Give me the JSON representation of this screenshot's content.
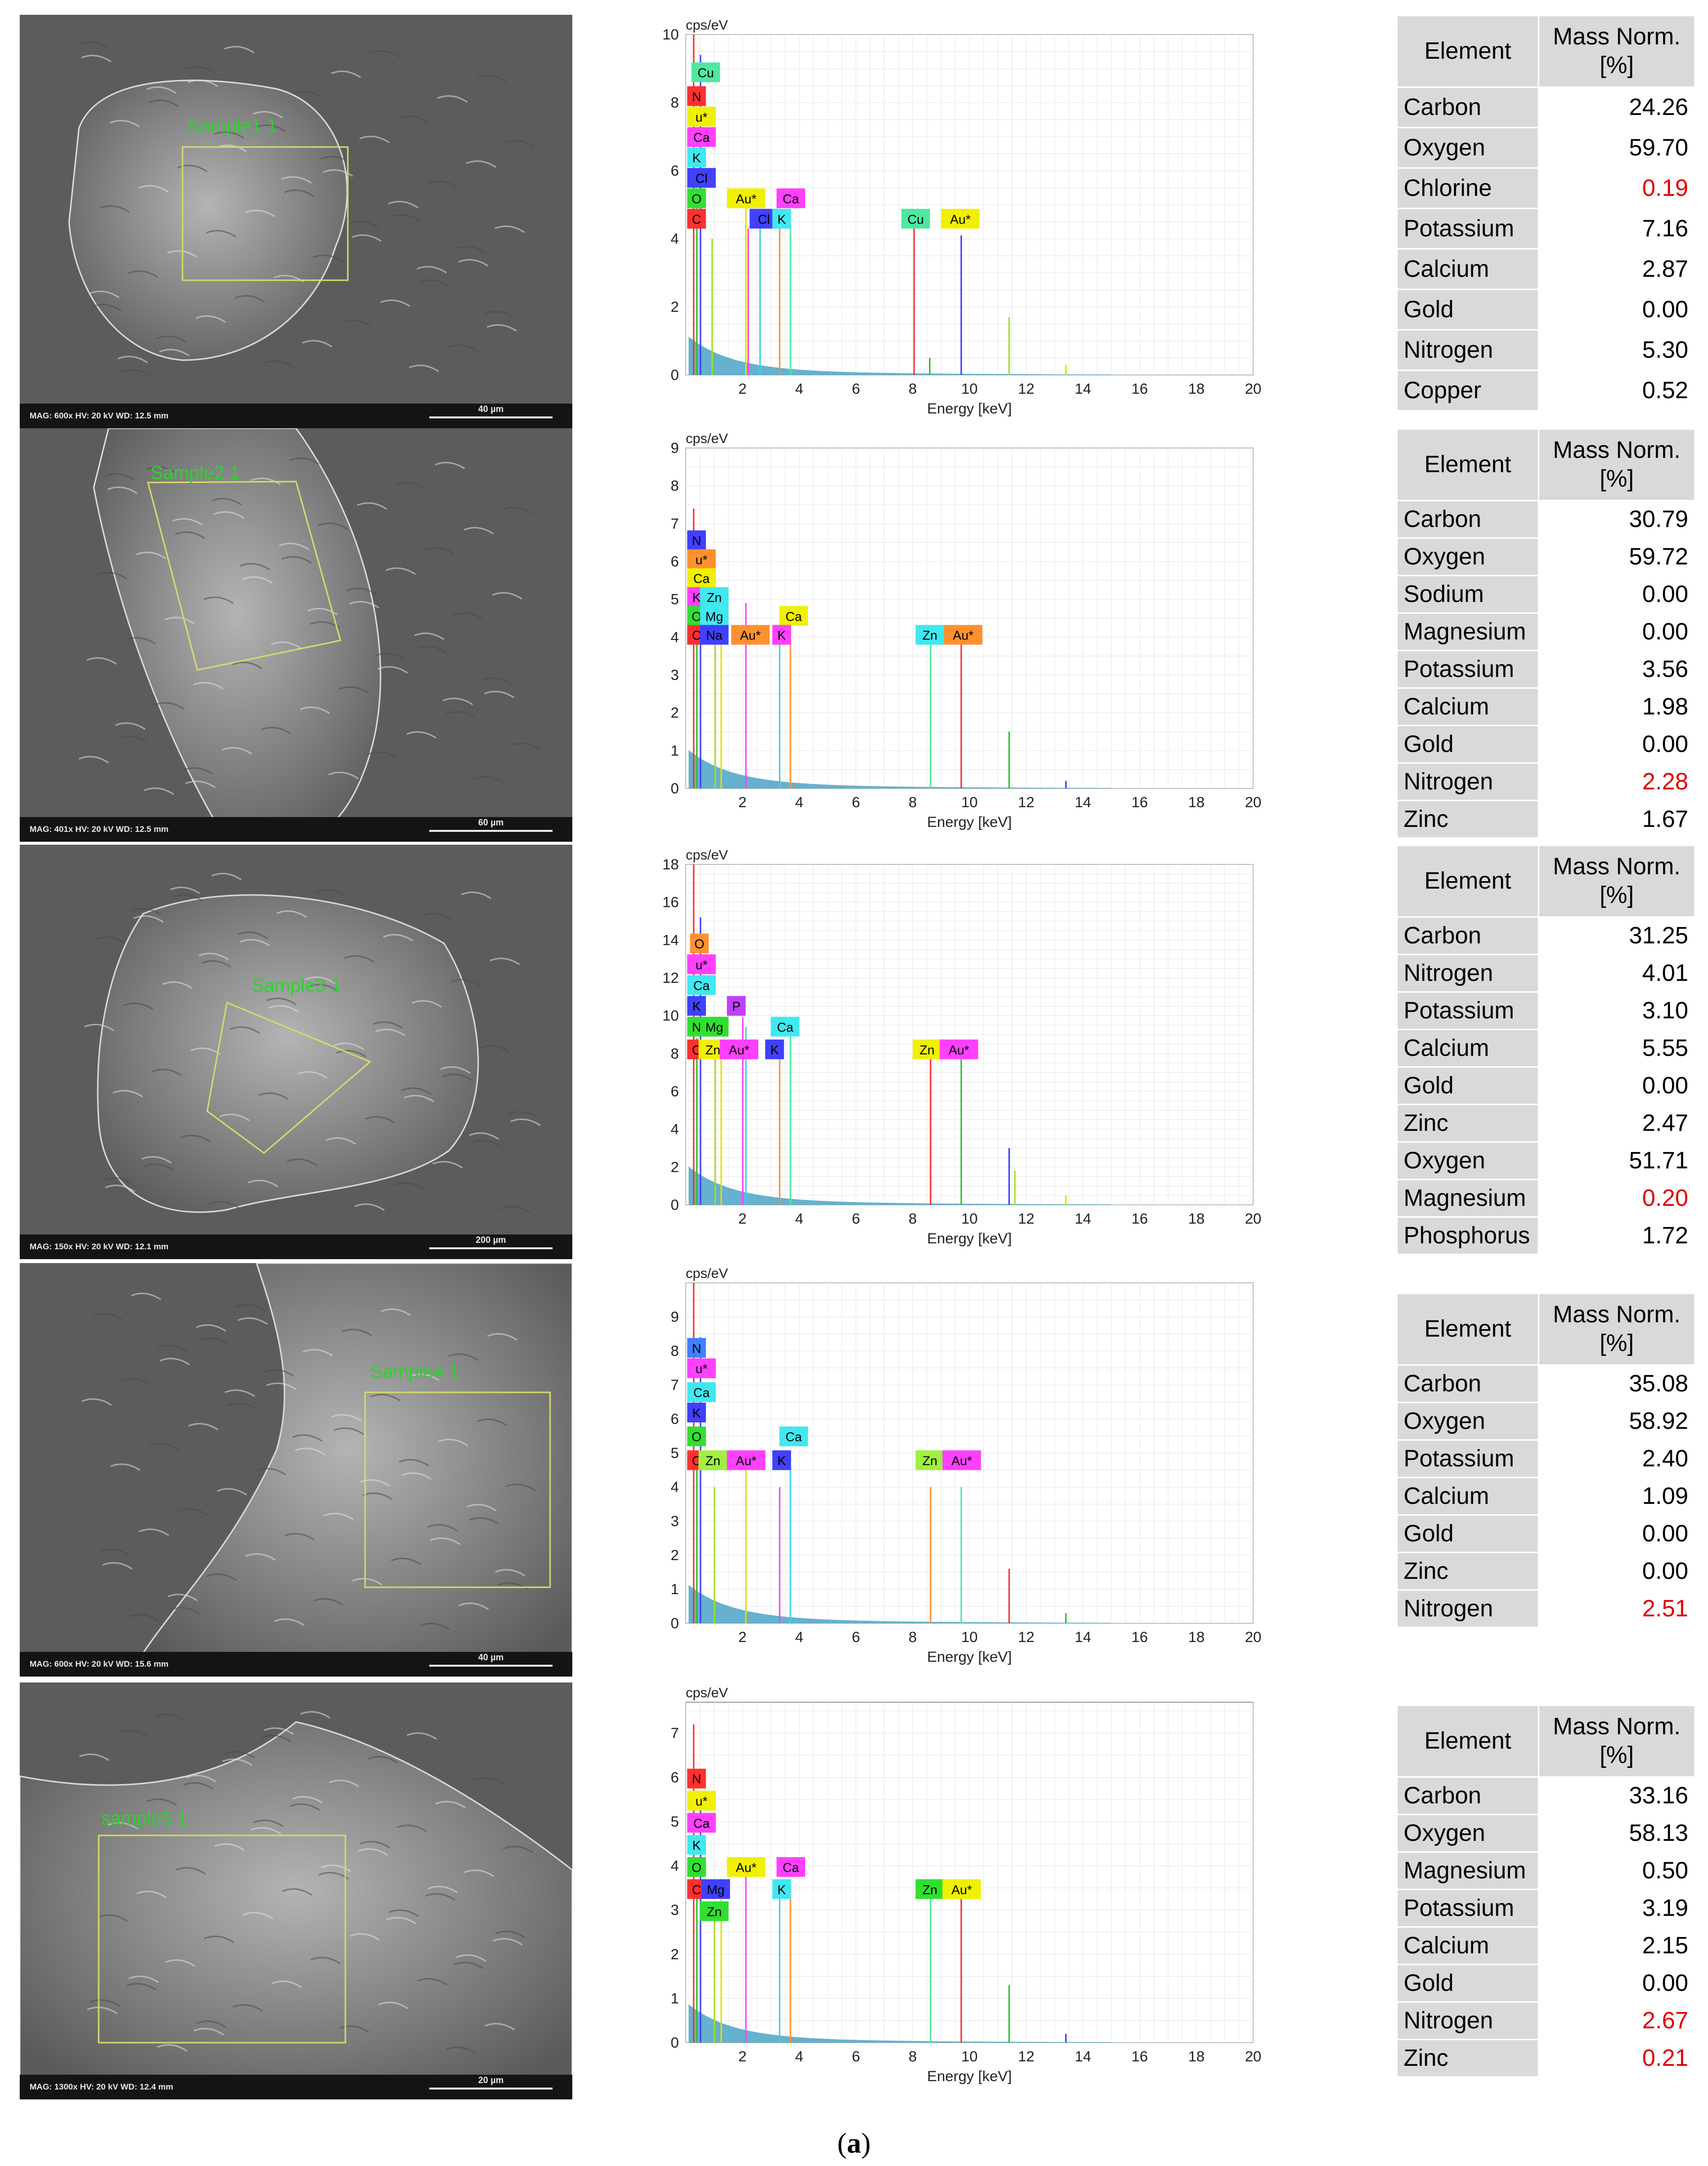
{
  "figure_label_open": "(",
  "figure_label_letter": "a",
  "figure_label_close": ")",
  "table_header_element": "Element",
  "table_header_mass_line1": "Mass Norm.",
  "table_header_mass_line2": "[%]",
  "highlight_color": "#e00000",
  "rows": [
    {
      "sem": {
        "meta": "MAG: 600x   HV: 20 kV   WD: 12.5 mm",
        "scale": "40 µm",
        "sample": "Sample1 1"
      },
      "elements": [
        {
          "name": "Carbon",
          "value": "24.26",
          "highlight": false
        },
        {
          "name": "Oxygen",
          "value": "59.70",
          "highlight": false
        },
        {
          "name": "Chlorine",
          "value": "0.19",
          "highlight": true
        },
        {
          "name": "Potassium",
          "value": "7.16",
          "highlight": false
        },
        {
          "name": "Calcium",
          "value": "2.87",
          "highlight": false
        },
        {
          "name": "Gold",
          "value": "0.00",
          "highlight": false
        },
        {
          "name": "Nitrogen",
          "value": "5.30",
          "highlight": false
        },
        {
          "name": "Copper",
          "value": "0.52",
          "highlight": false
        }
      ]
    },
    {
      "sem": {
        "meta": "MAG: 401x   HV: 20 kV   WD: 12.5 mm",
        "scale": "60 µm",
        "sample": "Sample2 1"
      },
      "elements": [
        {
          "name": "Carbon",
          "value": "30.79",
          "highlight": false
        },
        {
          "name": "Oxygen",
          "value": "59.72",
          "highlight": false
        },
        {
          "name": "Sodium",
          "value": "0.00",
          "highlight": false
        },
        {
          "name": "Magnesium",
          "value": "0.00",
          "highlight": false
        },
        {
          "name": "Potassium",
          "value": "3.56",
          "highlight": false
        },
        {
          "name": "Calcium",
          "value": "1.98",
          "highlight": false
        },
        {
          "name": "Gold",
          "value": "0.00",
          "highlight": false
        },
        {
          "name": "Nitrogen",
          "value": "2.28",
          "highlight": true
        },
        {
          "name": "Zinc",
          "value": "1.67",
          "highlight": false
        }
      ]
    },
    {
      "sem": {
        "meta": "MAG: 150x   HV: 20 kV   WD: 12.1 mm",
        "scale": "200 µm",
        "sample": "Sample3 1"
      },
      "elements": [
        {
          "name": "Carbon",
          "value": "31.25",
          "highlight": false
        },
        {
          "name": "Nitrogen",
          "value": "4.01",
          "highlight": false
        },
        {
          "name": "Potassium",
          "value": "3.10",
          "highlight": false
        },
        {
          "name": "Calcium",
          "value": "5.55",
          "highlight": false
        },
        {
          "name": "Gold",
          "value": "0.00",
          "highlight": false
        },
        {
          "name": "Zinc",
          "value": "2.47",
          "highlight": false
        },
        {
          "name": "Oxygen",
          "value": "51.71",
          "highlight": false
        },
        {
          "name": "Magnesium",
          "value": "0.20",
          "highlight": true
        },
        {
          "name": "Phosphorus",
          "value": "1.72",
          "highlight": false
        }
      ]
    },
    {
      "sem": {
        "meta": "MAG: 600x   HV: 20 kV   WD: 15.6 mm",
        "scale": "40 µm",
        "sample": "Sample4 1"
      },
      "elements": [
        {
          "name": "Carbon",
          "value": "35.08",
          "highlight": false
        },
        {
          "name": "Oxygen",
          "value": "58.92",
          "highlight": false
        },
        {
          "name": "Potassium",
          "value": "2.40",
          "highlight": false
        },
        {
          "name": "Calcium",
          "value": "1.09",
          "highlight": false
        },
        {
          "name": "Gold",
          "value": "0.00",
          "highlight": false
        },
        {
          "name": "Zinc",
          "value": "0.00",
          "highlight": false
        },
        {
          "name": "Nitrogen",
          "value": "2.51",
          "highlight": true
        }
      ]
    },
    {
      "sem": {
        "meta": "MAG: 1300x   HV: 20 kV   WD: 12.4 mm",
        "scale": "20 µm",
        "sample": "sample5 1"
      },
      "elements": [
        {
          "name": "Carbon",
          "value": "33.16",
          "highlight": false
        },
        {
          "name": "Oxygen",
          "value": "58.13",
          "highlight": false
        },
        {
          "name": "Magnesium",
          "value": "0.50",
          "highlight": false
        },
        {
          "name": "Potassium",
          "value": "3.19",
          "highlight": false
        },
        {
          "name": "Calcium",
          "value": "2.15",
          "highlight": false
        },
        {
          "name": "Gold",
          "value": "0.00",
          "highlight": false
        },
        {
          "name": "Nitrogen",
          "value": "2.67",
          "highlight": true
        },
        {
          "name": "Zinc",
          "value": "0.21",
          "highlight": true
        }
      ]
    }
  ],
  "chart_data": [
    {
      "type": "line",
      "ylabel": "cps/eV",
      "xlabel": "Energy [keV]",
      "xlim": [
        0,
        20
      ],
      "ylim": [
        0,
        10
      ],
      "xticks": [
        2,
        4,
        6,
        8,
        10,
        12,
        14,
        16,
        18,
        20
      ],
      "yticks": [
        0,
        2,
        4,
        6,
        8,
        10
      ],
      "grid": true,
      "peaks": [
        {
          "x": 0.28,
          "y": 10
        },
        {
          "x": 0.39,
          "y": 5.3
        },
        {
          "x": 0.52,
          "y": 9.4
        },
        {
          "x": 0.93,
          "y": 4.0
        },
        {
          "x": 2.12,
          "y": 4.9
        },
        {
          "x": 2.2,
          "y": 4.3
        },
        {
          "x": 2.62,
          "y": 4.5
        },
        {
          "x": 3.31,
          "y": 4.5
        },
        {
          "x": 3.69,
          "y": 4.4
        },
        {
          "x": 8.05,
          "y": 4.3
        },
        {
          "x": 8.6,
          "y": 0.5
        },
        {
          "x": 9.71,
          "y": 4.1
        },
        {
          "x": 11.4,
          "y": 1.7
        },
        {
          "x": 13.4,
          "y": 0.3
        }
      ],
      "element_labels": [
        {
          "text": "Cu",
          "x": 0.2,
          "y": 8.6,
          "color": "#4ee8a0"
        },
        {
          "text": "N",
          "x": 0.05,
          "y": 7.9,
          "color": "#ff3030"
        },
        {
          "text": "u*",
          "x": 0.05,
          "y": 7.3,
          "color": "#f0f000"
        },
        {
          "text": "Ca",
          "x": 0.05,
          "y": 6.7,
          "color": "#ff40ff"
        },
        {
          "text": "K",
          "x": 0.05,
          "y": 6.1,
          "color": "#40e8f0"
        },
        {
          "text": "Cl",
          "x": 0.05,
          "y": 5.5,
          "color": "#4040ff"
        },
        {
          "text": "O",
          "x": 0.05,
          "y": 4.9,
          "color": "#30e030"
        },
        {
          "text": "C",
          "x": 0.05,
          "y": 4.3,
          "color": "#ff3030"
        },
        {
          "text": "Au*",
          "x": 1.45,
          "y": 4.9,
          "color": "#f0f000"
        },
        {
          "text": "Ca",
          "x": 3.2,
          "y": 4.9,
          "color": "#ff40ff"
        },
        {
          "text": "Cl",
          "x": 2.25,
          "y": 4.3,
          "color": "#4040ff"
        },
        {
          "text": "K",
          "x": 3.05,
          "y": 4.3,
          "color": "#40e8f0"
        },
        {
          "text": "Cu",
          "x": 7.6,
          "y": 4.3,
          "color": "#4ee8a0"
        },
        {
          "text": "Au*",
          "x": 9.0,
          "y": 4.3,
          "color": "#f0f000"
        }
      ]
    },
    {
      "type": "line",
      "ylabel": "cps/eV",
      "xlabel": "Energy [keV]",
      "xlim": [
        0,
        20
      ],
      "ylim": [
        0,
        9
      ],
      "xticks": [
        2,
        4,
        6,
        8,
        10,
        12,
        14,
        16,
        18,
        20
      ],
      "yticks": [
        0,
        1,
        2,
        3,
        4,
        5,
        6,
        7,
        8,
        9
      ],
      "grid": true,
      "peaks": [
        {
          "x": 0.28,
          "y": 7.4
        },
        {
          "x": 0.39,
          "y": 4.6
        },
        {
          "x": 0.52,
          "y": 6.6
        },
        {
          "x": 1.04,
          "y": 4.3
        },
        {
          "x": 1.25,
          "y": 4.0
        },
        {
          "x": 2.12,
          "y": 4.9
        },
        {
          "x": 3.31,
          "y": 4.0
        },
        {
          "x": 3.69,
          "y": 4.3
        },
        {
          "x": 8.63,
          "y": 4.0
        },
        {
          "x": 9.71,
          "y": 4.0
        },
        {
          "x": 11.4,
          "y": 1.5
        },
        {
          "x": 13.4,
          "y": 0.2
        }
      ],
      "element_labels": [
        {
          "text": "N",
          "x": 0.05,
          "y": 6.3,
          "color": "#4040ff"
        },
        {
          "text": "u*",
          "x": 0.05,
          "y": 5.8,
          "color": "#ff9030"
        },
        {
          "text": "Ca",
          "x": 0.05,
          "y": 5.3,
          "color": "#f0f000"
        },
        {
          "text": "K",
          "x": 0.05,
          "y": 4.8,
          "color": "#ff40ff"
        },
        {
          "text": "Zn",
          "x": 0.5,
          "y": 4.8,
          "color": "#40e8f0"
        },
        {
          "text": "O",
          "x": 0.05,
          "y": 4.3,
          "color": "#30e030"
        },
        {
          "text": "Mg",
          "x": 0.5,
          "y": 4.3,
          "color": "#40e8f0"
        },
        {
          "text": "C",
          "x": 0.05,
          "y": 3.8,
          "color": "#ff3030"
        },
        {
          "text": "Na",
          "x": 0.5,
          "y": 3.8,
          "color": "#4040ff"
        },
        {
          "text": "Au*",
          "x": 1.6,
          "y": 3.8,
          "color": "#ff9030"
        },
        {
          "text": "Ca",
          "x": 3.3,
          "y": 4.3,
          "color": "#f0f000"
        },
        {
          "text": "K",
          "x": 3.05,
          "y": 3.8,
          "color": "#ff40ff"
        },
        {
          "text": "Zn",
          "x": 8.1,
          "y": 3.8,
          "color": "#40e8f0"
        },
        {
          "text": "Au*",
          "x": 9.1,
          "y": 3.8,
          "color": "#ff9030"
        }
      ]
    },
    {
      "type": "line",
      "ylabel": "cps/eV",
      "xlabel": "Energy [keV]",
      "xlim": [
        0,
        20
      ],
      "ylim": [
        0,
        18
      ],
      "xticks": [
        2,
        4,
        6,
        8,
        10,
        12,
        14,
        16,
        18,
        20
      ],
      "yticks": [
        0,
        2,
        4,
        6,
        8,
        10,
        12,
        14,
        16,
        18
      ],
      "grid": true,
      "peaks": [
        {
          "x": 0.28,
          "y": 18
        },
        {
          "x": 0.39,
          "y": 8.8
        },
        {
          "x": 0.52,
          "y": 15.2
        },
        {
          "x": 1.04,
          "y": 8.0
        },
        {
          "x": 1.25,
          "y": 8.1
        },
        {
          "x": 2.01,
          "y": 9.9
        },
        {
          "x": 2.12,
          "y": 9.4
        },
        {
          "x": 3.31,
          "y": 8.1
        },
        {
          "x": 3.69,
          "y": 9.0
        },
        {
          "x": 8.63,
          "y": 8.0
        },
        {
          "x": 9.71,
          "y": 8.1
        },
        {
          "x": 11.4,
          "y": 3.0
        },
        {
          "x": 11.6,
          "y": 1.8
        },
        {
          "x": 13.4,
          "y": 0.5
        }
      ],
      "element_labels": [
        {
          "text": "O",
          "x": 0.15,
          "y": 13.3,
          "color": "#ff9030"
        },
        {
          "text": "u*",
          "x": 0.05,
          "y": 12.2,
          "color": "#ff40ff"
        },
        {
          "text": "Ca",
          "x": 0.05,
          "y": 11.1,
          "color": "#40e8f0"
        },
        {
          "text": "K",
          "x": 0.05,
          "y": 10.0,
          "color": "#4040ff"
        },
        {
          "text": "P",
          "x": 1.45,
          "y": 10.0,
          "color": "#c040ff"
        },
        {
          "text": "N",
          "x": 0.05,
          "y": 8.9,
          "color": "#30e030"
        },
        {
          "text": "Mg",
          "x": 0.5,
          "y": 8.9,
          "color": "#30e030"
        },
        {
          "text": "Ca",
          "x": 3.0,
          "y": 8.9,
          "color": "#40e8f0"
        },
        {
          "text": "C",
          "x": 0.05,
          "y": 7.7,
          "color": "#ff3030"
        },
        {
          "text": "Zn",
          "x": 0.45,
          "y": 7.7,
          "color": "#f0f000"
        },
        {
          "text": "Au*",
          "x": 1.2,
          "y": 7.7,
          "color": "#ff40ff"
        },
        {
          "text": "K",
          "x": 2.8,
          "y": 7.7,
          "color": "#4040ff"
        },
        {
          "text": "Zn",
          "x": 8.0,
          "y": 7.7,
          "color": "#f0f000"
        },
        {
          "text": "Au*",
          "x": 8.95,
          "y": 7.7,
          "color": "#ff40ff"
        }
      ]
    },
    {
      "type": "line",
      "ylabel": "cps/eV",
      "xlabel": "Energy [keV]",
      "xlim": [
        0,
        20
      ],
      "ylim": [
        0,
        10
      ],
      "xticks": [
        2,
        4,
        6,
        8,
        10,
        12,
        14,
        16,
        18,
        20
      ],
      "yticks": [
        0,
        1,
        2,
        3,
        4,
        5,
        6,
        7,
        8,
        9
      ],
      "grid": true,
      "peaks": [
        {
          "x": 0.28,
          "y": 10
        },
        {
          "x": 0.39,
          "y": 4.8
        },
        {
          "x": 0.52,
          "y": 8.4
        },
        {
          "x": 1.01,
          "y": 4.0
        },
        {
          "x": 2.12,
          "y": 4.8
        },
        {
          "x": 3.31,
          "y": 4.0
        },
        {
          "x": 3.69,
          "y": 4.6
        },
        {
          "x": 8.63,
          "y": 4.0
        },
        {
          "x": 9.71,
          "y": 4.0
        },
        {
          "x": 11.4,
          "y": 1.6
        },
        {
          "x": 13.4,
          "y": 0.3
        }
      ],
      "element_labels": [
        {
          "text": "N",
          "x": 0.05,
          "y": 7.8,
          "color": "#4080ff"
        },
        {
          "text": "u*",
          "x": 0.05,
          "y": 7.2,
          "color": "#ff40ff"
        },
        {
          "text": "Ca",
          "x": 0.05,
          "y": 6.5,
          "color": "#40e8f0"
        },
        {
          "text": "K",
          "x": 0.05,
          "y": 5.9,
          "color": "#4040ff"
        },
        {
          "text": "O",
          "x": 0.05,
          "y": 5.2,
          "color": "#30e030"
        },
        {
          "text": "Ca",
          "x": 3.3,
          "y": 5.2,
          "color": "#40e8f0"
        },
        {
          "text": "C",
          "x": 0.05,
          "y": 4.5,
          "color": "#ff3030"
        },
        {
          "text": "Zn",
          "x": 0.45,
          "y": 4.5,
          "color": "#a0f040"
        },
        {
          "text": "Au*",
          "x": 1.45,
          "y": 4.5,
          "color": "#ff40ff"
        },
        {
          "text": "K",
          "x": 3.05,
          "y": 4.5,
          "color": "#4040ff"
        },
        {
          "text": "Zn",
          "x": 8.1,
          "y": 4.5,
          "color": "#a0f040"
        },
        {
          "text": "Au*",
          "x": 9.05,
          "y": 4.5,
          "color": "#ff40ff"
        }
      ]
    },
    {
      "type": "line",
      "ylabel": "cps/eV",
      "xlabel": "Energy [keV]",
      "xlim": [
        0,
        20
      ],
      "ylim": [
        0,
        7.7
      ],
      "xticks": [
        2,
        4,
        6,
        8,
        10,
        12,
        14,
        16,
        18,
        20
      ],
      "yticks": [
        0,
        1,
        2,
        3,
        4,
        5,
        6,
        7
      ],
      "grid": true,
      "peaks": [
        {
          "x": 0.28,
          "y": 7.2
        },
        {
          "x": 0.39,
          "y": 3.6
        },
        {
          "x": 0.52,
          "y": 5.6
        },
        {
          "x": 1.01,
          "y": 3.0
        },
        {
          "x": 1.25,
          "y": 3.4
        },
        {
          "x": 2.12,
          "y": 3.8
        },
        {
          "x": 3.31,
          "y": 3.3
        },
        {
          "x": 3.69,
          "y": 3.6
        },
        {
          "x": 8.63,
          "y": 3.3
        },
        {
          "x": 9.71,
          "y": 3.3
        },
        {
          "x": 11.4,
          "y": 1.3
        },
        {
          "x": 13.4,
          "y": 0.2
        }
      ],
      "element_labels": [
        {
          "text": "N",
          "x": 0.05,
          "y": 5.75,
          "color": "#ff3030"
        },
        {
          "text": "u*",
          "x": 0.05,
          "y": 5.25,
          "color": "#f0f000"
        },
        {
          "text": "Ca",
          "x": 0.05,
          "y": 4.75,
          "color": "#ff40ff"
        },
        {
          "text": "K",
          "x": 0.05,
          "y": 4.25,
          "color": "#40e8f0"
        },
        {
          "text": "O",
          "x": 0.05,
          "y": 3.75,
          "color": "#30e030"
        },
        {
          "text": "Au*",
          "x": 1.45,
          "y": 3.75,
          "color": "#f0f000"
        },
        {
          "text": "Ca",
          "x": 3.2,
          "y": 3.75,
          "color": "#ff40ff"
        },
        {
          "text": "C",
          "x": 0.05,
          "y": 3.25,
          "color": "#ff3030"
        },
        {
          "text": "Mg",
          "x": 0.55,
          "y": 3.25,
          "color": "#4040ff"
        },
        {
          "text": "K",
          "x": 3.05,
          "y": 3.25,
          "color": "#40e8f0"
        },
        {
          "text": "Zn",
          "x": 8.1,
          "y": 3.25,
          "color": "#30e030"
        },
        {
          "text": "Au*",
          "x": 9.05,
          "y": 3.25,
          "color": "#f0f000"
        },
        {
          "text": "Zn",
          "x": 0.5,
          "y": 2.75,
          "color": "#30e030"
        }
      ]
    }
  ]
}
